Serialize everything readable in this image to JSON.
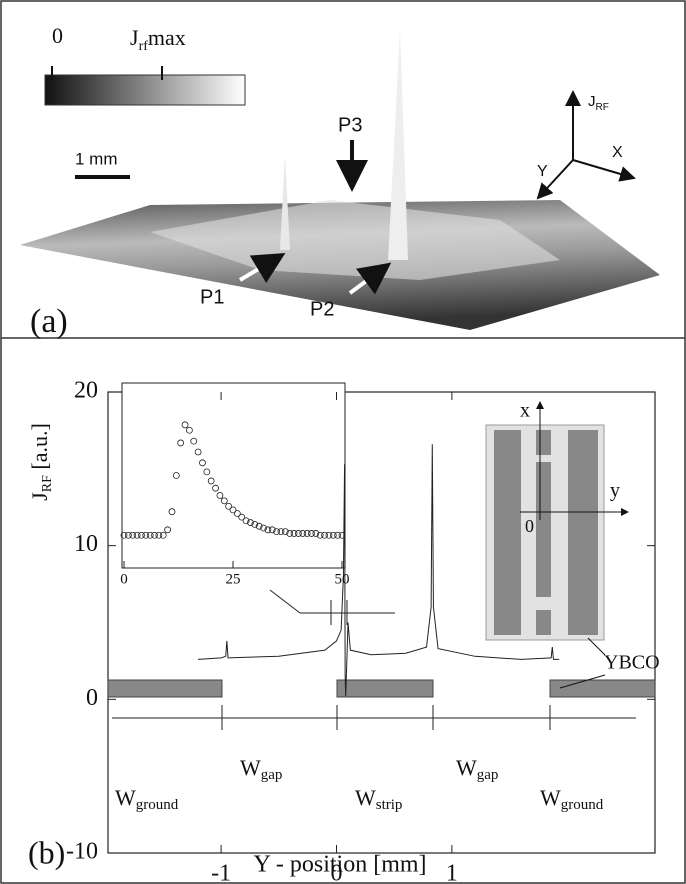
{
  "chart_data": [
    {
      "type": "surface",
      "colorbar": {
        "min_label": "0",
        "max_label": {
          "text": "J",
          "sub": "rf",
          "after": "max"
        }
      },
      "scale_label": "1 mm",
      "axes": {
        "up": {
          "text": "J",
          "sub": "RF"
        },
        "right": "X",
        "down": "Y"
      },
      "annotations": [
        "P1",
        "P2",
        "P3"
      ],
      "panel_label": "(a)"
    },
    {
      "type": "line",
      "panel_label": "(b)",
      "x_label": "Y - position [mm]",
      "y_label": {
        "text": "J",
        "sub": "RF",
        "after": " [a.u.]"
      },
      "xlim": [
        -1.98,
        2.76
      ],
      "ylim": [
        -10,
        20
      ],
      "xticks": [
        -1,
        0,
        1
      ],
      "yticks": [
        -10,
        0,
        10,
        20
      ],
      "color": "#222",
      "x": [
        -1.2,
        -1.0,
        -0.96,
        -0.95,
        -0.94,
        -0.5,
        -0.1,
        0.0,
        0.04,
        0.06,
        0.07,
        0.075,
        0.08,
        0.1,
        0.12,
        0.3,
        0.6,
        0.78,
        0.82,
        0.83,
        0.84,
        0.88,
        1.2,
        1.6,
        1.86,
        1.87,
        1.88,
        1.93
      ],
      "values": [
        2.6,
        2.7,
        2.8,
        3.8,
        2.7,
        2.8,
        3.2,
        3.8,
        4.5,
        8,
        15.3,
        1.5,
        0.2,
        5,
        3.2,
        2.9,
        3.0,
        3.4,
        6,
        16.6,
        6,
        3.3,
        2.8,
        2.6,
        2.7,
        3.4,
        2.6,
        2.6
      ],
      "labels": {
        "gap": {
          "text": "W",
          "sub": "gap"
        },
        "strip": {
          "text": "W",
          "sub": "strip"
        },
        "ground": {
          "text": "W",
          "sub": "ground"
        },
        "material": "YBCO",
        "device_x": "x",
        "device_y": "y",
        "device_origin": "0"
      },
      "inset": {
        "type": "scatter",
        "xlim": [
          0,
          50
        ],
        "ylim": [
          0,
          1
        ],
        "xticks": [
          0,
          25,
          50
        ],
        "x": [
          0,
          1,
          2,
          3,
          4,
          5,
          6,
          7,
          8,
          9,
          10,
          11,
          12,
          13,
          14,
          15,
          16,
          17,
          18,
          19,
          20,
          21,
          22,
          23,
          24,
          25,
          26,
          27,
          28,
          29,
          30,
          31,
          32,
          33,
          34,
          35,
          36,
          37,
          38,
          39,
          40,
          41,
          42,
          43,
          44,
          45,
          46,
          47,
          48,
          49,
          50
        ],
        "values": [
          0.17,
          0.17,
          0.17,
          0.17,
          0.17,
          0.17,
          0.17,
          0.17,
          0.17,
          0.17,
          0.2,
          0.3,
          0.5,
          0.68,
          0.78,
          0.75,
          0.69,
          0.63,
          0.57,
          0.52,
          0.47,
          0.43,
          0.39,
          0.36,
          0.33,
          0.31,
          0.29,
          0.27,
          0.25,
          0.24,
          0.23,
          0.22,
          0.21,
          0.2,
          0.2,
          0.19,
          0.19,
          0.19,
          0.18,
          0.18,
          0.18,
          0.18,
          0.18,
          0.18,
          0.18,
          0.17,
          0.17,
          0.17,
          0.17,
          0.17,
          0.17
        ]
      }
    }
  ]
}
